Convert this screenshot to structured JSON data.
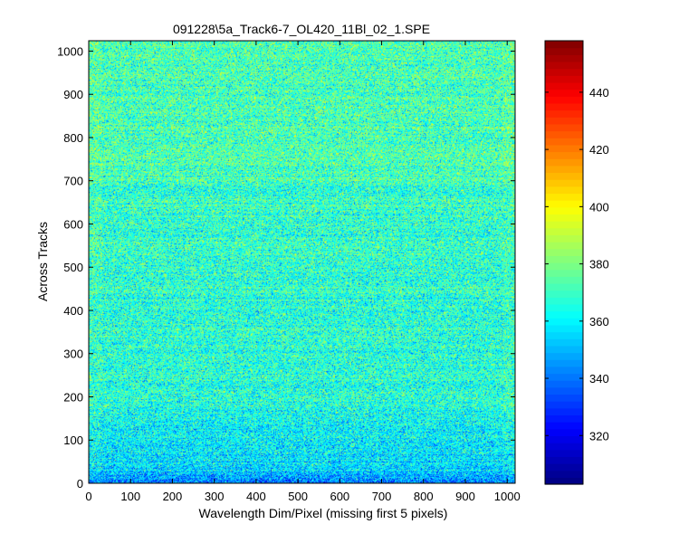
{
  "chart_data": {
    "type": "heatmap",
    "title": "091228\\5a_Track6-7_OL420_11Bl_02_1.SPE",
    "xlabel": "Wavelength Dim/Pixel (missing first 5 pixels)",
    "ylabel": "Across Tracks",
    "xlim": [
      0,
      1019
    ],
    "ylim": [
      0,
      1024
    ],
    "x_ticks": [
      0,
      100,
      200,
      300,
      400,
      500,
      600,
      700,
      800,
      900,
      1000
    ],
    "y_ticks": [
      0,
      100,
      200,
      300,
      400,
      500,
      600,
      700,
      800,
      900,
      1000
    ],
    "colormap": "jet",
    "color_range": [
      303,
      458
    ],
    "colorbar_ticks": [
      320,
      340,
      360,
      380,
      400,
      420,
      440
    ],
    "typical_values": {
      "bottom_rows_0_to_30": 340,
      "rows_30_to_200": 355,
      "rows_200_to_700": 366,
      "rows_700_to_1024": 372,
      "noise_spread": 12
    },
    "grid": false,
    "colorbar": "right"
  }
}
